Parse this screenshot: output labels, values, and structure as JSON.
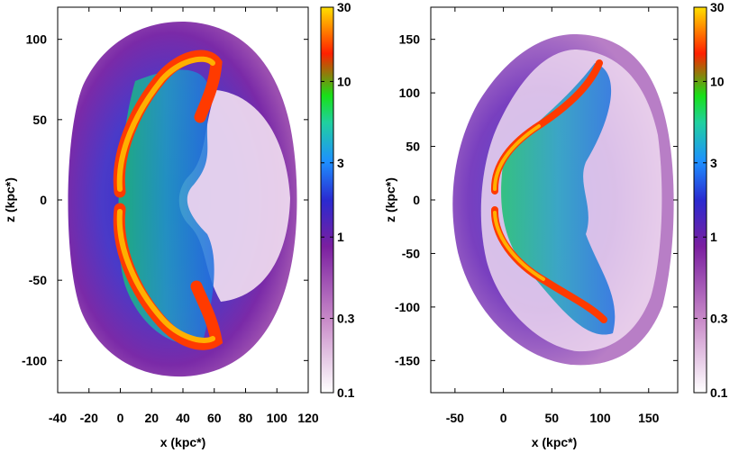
{
  "chart_data": [
    {
      "type": "heatmap",
      "xlabel": "x (kpc*)",
      "ylabel": "z (kpc*)",
      "xlim": [
        -40,
        120
      ],
      "ylim": [
        -120,
        120
      ],
      "xticks": [
        "-40",
        "-20",
        "0",
        "20",
        "40",
        "60",
        "80",
        "100",
        "120"
      ],
      "yticks": [
        "100",
        "50",
        "0",
        "-50",
        "-100"
      ],
      "colorbar": {
        "scale": "log",
        "range": [
          0.1,
          30
        ],
        "ticks": [
          "30",
          "10",
          "3",
          "1",
          "0.3",
          "0.1"
        ],
        "colors": [
          "#ffffff",
          "#9b2fa0",
          "#2a1fc8",
          "#1e90ff",
          "#18e018",
          "#ff2000",
          "#ffe000"
        ]
      }
    },
    {
      "type": "heatmap",
      "xlabel": "x (kpc*)",
      "ylabel": "z (kpc*)",
      "xlim": [
        -75,
        180
      ],
      "ylim": [
        -180,
        180
      ],
      "xticks": [
        "-50",
        "0",
        "50",
        "100",
        "150"
      ],
      "yticks": [
        "150",
        "100",
        "50",
        "0",
        "-50",
        "-100",
        "-150"
      ],
      "colorbar": {
        "scale": "log",
        "range": [
          0.1,
          30
        ],
        "ticks": [
          "30",
          "10",
          "3",
          "1",
          "0.3",
          "0.1"
        ],
        "colors": [
          "#ffffff",
          "#9b2fa0",
          "#2a1fc8",
          "#1e90ff",
          "#18e018",
          "#ff2000",
          "#ffe000"
        ]
      }
    }
  ]
}
